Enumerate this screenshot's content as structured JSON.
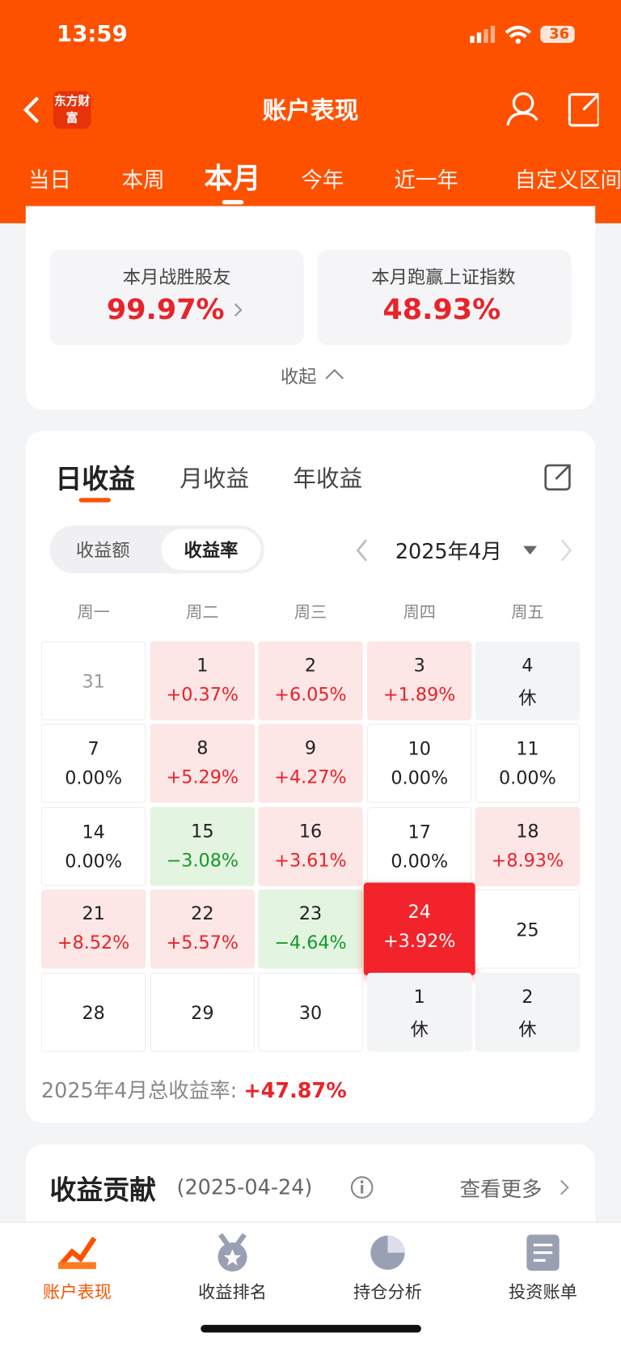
{
  "status": {
    "time": "13:59",
    "battery": "36"
  },
  "header": {
    "title": "账户表现",
    "logo": "东方财富"
  },
  "period_tabs": [
    "当日",
    "本周",
    "本月",
    "今年",
    "近一年",
    "自定义区间"
  ],
  "active_period": 2,
  "stats": [
    {
      "label": "本月战胜股友",
      "value": "99.97%"
    },
    {
      "label": "本月跑赢上证指数",
      "value": "48.93%"
    }
  ],
  "collapse": "收起",
  "income_tabs": [
    "日收益",
    "月收益",
    "年收益"
  ],
  "toggle": [
    "收益额",
    "收益率"
  ],
  "month": "2025年4月",
  "weekdays": [
    "周一",
    "周二",
    "周三",
    "周四",
    "周五"
  ],
  "cells": [
    {
      "day": 31,
      "kind": "other"
    },
    {
      "day": 1,
      "value": "+0.37%",
      "kind": "up"
    },
    {
      "day": 2,
      "value": "+6.05%",
      "kind": "up"
    },
    {
      "day": 3,
      "value": "+1.89%",
      "kind": "up"
    },
    {
      "day": 4,
      "value": "休",
      "kind": "rest"
    },
    {
      "day": 7,
      "value": "0.00%",
      "kind": "flat"
    },
    {
      "day": 8,
      "value": "+5.29%",
      "kind": "up"
    },
    {
      "day": 9,
      "value": "+4.27%",
      "kind": "up"
    },
    {
      "day": 10,
      "value": "0.00%",
      "kind": "flat"
    },
    {
      "day": 11,
      "value": "0.00%",
      "kind": "flat"
    },
    {
      "day": 14,
      "value": "0.00%",
      "kind": "flat"
    },
    {
      "day": 15,
      "value": "−3.08%",
      "kind": "down"
    },
    {
      "day": 16,
      "value": "+3.61%",
      "kind": "up"
    },
    {
      "day": 17,
      "value": "0.00%",
      "kind": "flat"
    },
    {
      "day": 18,
      "value": "+8.93%",
      "kind": "up"
    },
    {
      "day": 21,
      "value": "+8.52%",
      "kind": "up"
    },
    {
      "day": 22,
      "value": "+5.57%",
      "kind": "up"
    },
    {
      "day": 23,
      "value": "−4.64%",
      "kind": "down"
    },
    {
      "day": 24,
      "value": "+3.92%",
      "kind": "selected"
    },
    {
      "day": 25,
      "kind": "flat"
    },
    {
      "day": 28,
      "kind": "flat"
    },
    {
      "day": 29,
      "kind": "flat"
    },
    {
      "day": 30,
      "kind": "flat"
    },
    {
      "day": 1,
      "value": "休",
      "kind": "rest"
    },
    {
      "day": 2,
      "value": "休",
      "kind": "rest"
    }
  ],
  "total": {
    "label": "2025年4月总收益率: ",
    "value": "+47.87%"
  },
  "contribution": {
    "title": "收益贡献",
    "date": "(2025-04-24)",
    "more": "查看更多"
  },
  "nav": [
    "账户表现",
    "收益排名",
    "持仓分析",
    "投资账单"
  ]
}
